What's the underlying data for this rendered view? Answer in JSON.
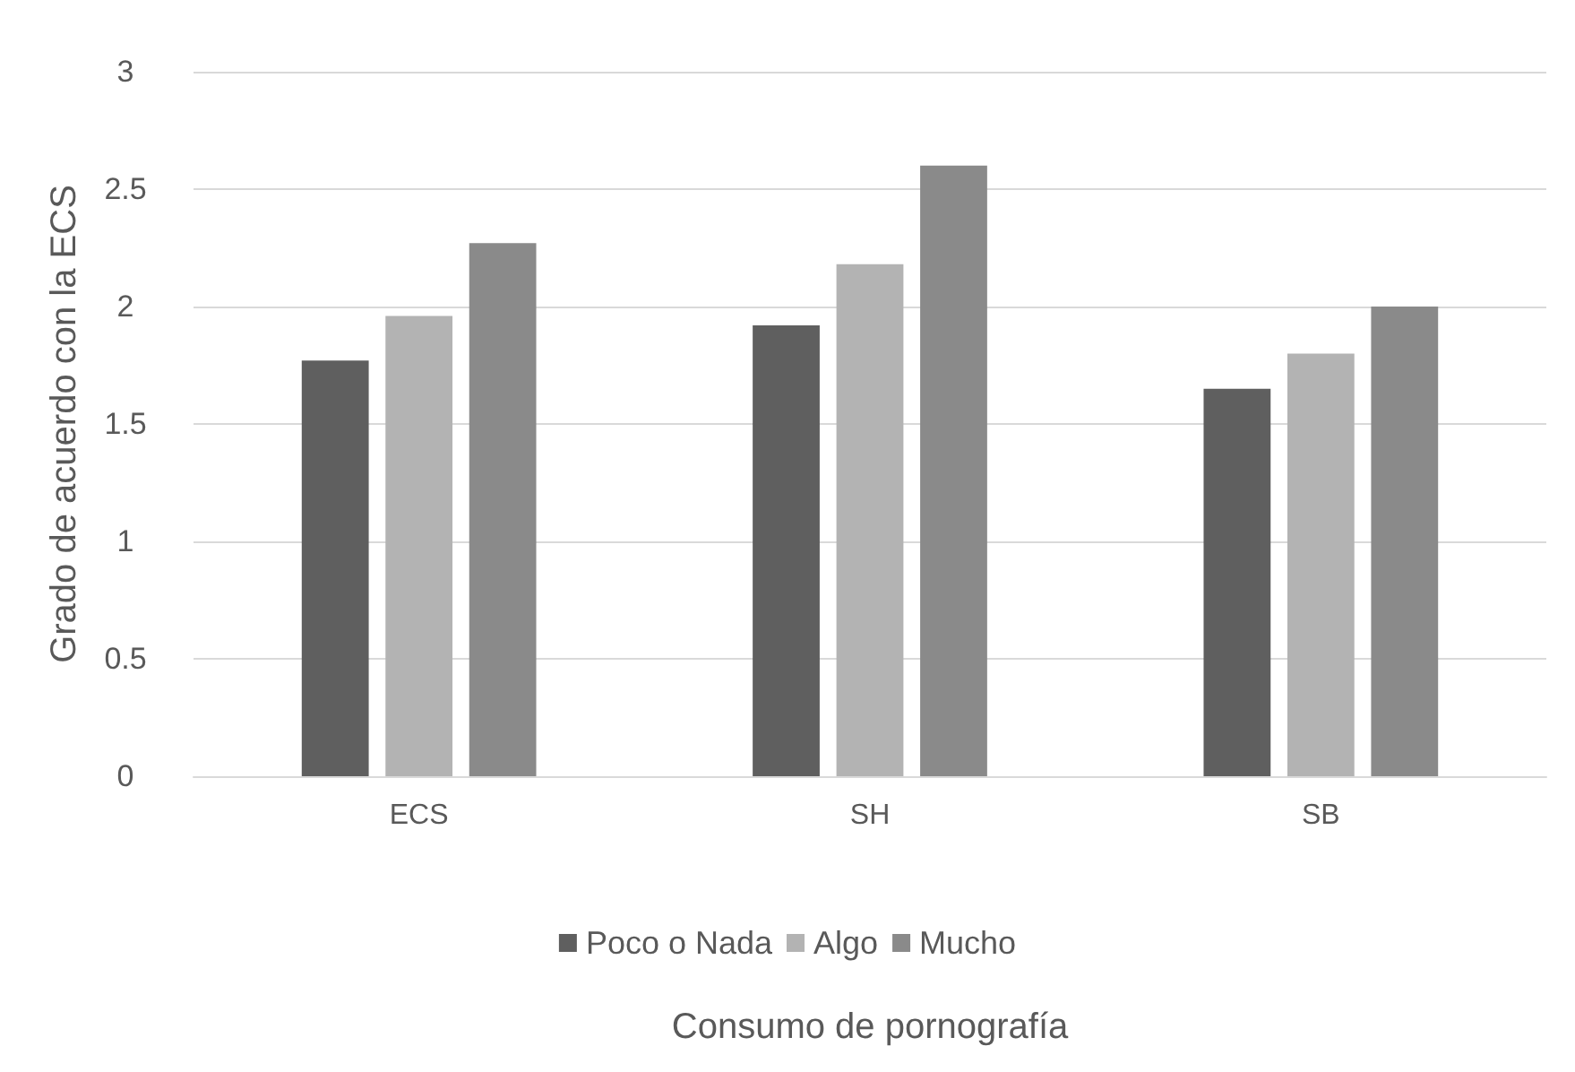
{
  "chart_data": {
    "type": "bar",
    "xlabel": "Consumo de pornografía",
    "ylabel": "Grado de acuerdo con la ECS",
    "categories": [
      "ECS",
      "SH",
      "SB"
    ],
    "series": [
      {
        "name": "Poco o Nada",
        "color": "#5f5f5f",
        "values": [
          1.77,
          1.92,
          1.65
        ]
      },
      {
        "name": "Algo",
        "color": "#b3b3b3",
        "values": [
          1.96,
          2.18,
          1.8
        ]
      },
      {
        "name": "Mucho",
        "color": "#8a8a8a",
        "values": [
          2.27,
          2.6,
          2.0
        ]
      }
    ],
    "ylim": [
      0,
      3
    ],
    "yticks": [
      0,
      0.5,
      1,
      1.5,
      2,
      2.5,
      3
    ],
    "grid": "y",
    "legend": "bottom"
  }
}
